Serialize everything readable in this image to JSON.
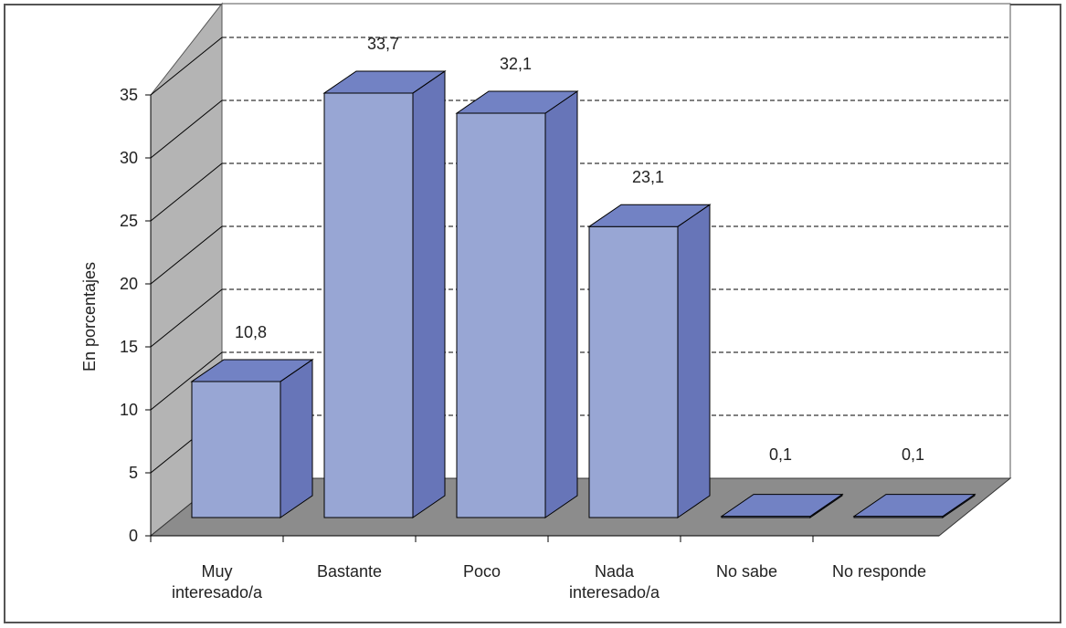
{
  "chart_data": {
    "type": "bar",
    "style": "3d-column",
    "title": "",
    "xlabel": "",
    "ylabel": "En porcentajes",
    "ylim": [
      0,
      35
    ],
    "yticks": [
      "0",
      "5",
      "10",
      "15",
      "20",
      "25",
      "30",
      "35"
    ],
    "grid": true,
    "legend": "none",
    "categories": [
      [
        "Muy",
        "interesado/a"
      ],
      [
        "Bastante"
      ],
      [
        "Poco"
      ],
      [
        "Nada",
        "interesado/a"
      ],
      [
        "No sabe"
      ],
      [
        "No responde"
      ]
    ],
    "values": [
      10.8,
      33.7,
      32.1,
      23.1,
      0.1,
      0.1
    ],
    "value_labels": [
      "10,8",
      "33,7",
      "32,1",
      "23,1",
      "0,1",
      "0,1"
    ]
  },
  "colors": {
    "bar_front": "#98A6D4",
    "bar_side": "#6775B8",
    "bar_top": "#7282C4",
    "wall": "#B4B4B4",
    "floor": "#8C8C8C",
    "grid": "#000000",
    "frame": "#555555"
  }
}
